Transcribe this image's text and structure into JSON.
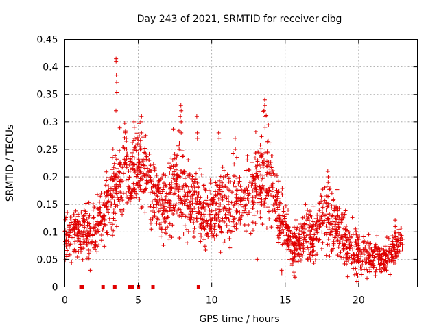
{
  "chart_data": {
    "type": "scatter",
    "title": "Day 243 of 2021, SRMTID for receiver cibg",
    "xlabel": "GPS time / hours",
    "ylabel": "SRMTID / TECUs",
    "xlim": [
      0,
      24
    ],
    "ylim": [
      0,
      0.45
    ],
    "x_ticks": [
      0,
      5,
      10,
      15,
      20
    ],
    "x_tick_labels": [
      "0",
      "5",
      "10",
      "15",
      "20"
    ],
    "y_ticks": [
      0,
      0.05,
      0.1,
      0.15,
      0.2,
      0.25,
      0.3,
      0.35,
      0.4,
      0.45
    ],
    "y_tick_labels": [
      "0",
      "0.05",
      "0.1",
      "0.15",
      "0.2",
      "0.25",
      "0.3",
      "0.35",
      "0.4",
      "0.45"
    ],
    "grid": true,
    "marker": "plus",
    "color": "#e00000",
    "trend_hours": [
      0,
      0.5,
      1,
      1.5,
      2,
      2.5,
      3,
      3.5,
      4,
      4.5,
      5,
      5.5,
      6,
      6.5,
      7,
      7.5,
      8,
      8.5,
      9,
      9.5,
      10,
      10.5,
      11,
      11.5,
      12,
      12.5,
      13,
      13.5,
      14,
      14.5,
      15,
      15.5,
      16,
      16.5,
      17,
      17.5,
      18,
      18.5,
      19,
      19.5,
      20,
      20.5,
      21,
      21.5,
      22,
      22.5,
      23
    ],
    "trend_values": [
      0.09,
      0.1,
      0.09,
      0.11,
      0.1,
      0.13,
      0.15,
      0.18,
      0.22,
      0.2,
      0.23,
      0.2,
      0.17,
      0.15,
      0.14,
      0.2,
      0.18,
      0.16,
      0.15,
      0.13,
      0.14,
      0.15,
      0.15,
      0.16,
      0.15,
      0.17,
      0.18,
      0.22,
      0.2,
      0.14,
      0.11,
      0.07,
      0.08,
      0.1,
      0.09,
      0.13,
      0.12,
      0.11,
      0.08,
      0.07,
      0.06,
      0.06,
      0.05,
      0.05,
      0.05,
      0.08,
      0.09
    ],
    "spread": [
      0.03,
      0.03,
      0.03,
      0.035,
      0.035,
      0.04,
      0.05,
      0.06,
      0.06,
      0.05,
      0.05,
      0.05,
      0.045,
      0.045,
      0.05,
      0.06,
      0.06,
      0.05,
      0.05,
      0.05,
      0.05,
      0.05,
      0.05,
      0.05,
      0.05,
      0.05,
      0.055,
      0.06,
      0.06,
      0.04,
      0.035,
      0.03,
      0.03,
      0.04,
      0.04,
      0.045,
      0.045,
      0.04,
      0.035,
      0.03,
      0.03,
      0.025,
      0.025,
      0.025,
      0.025,
      0.03,
      0.03
    ],
    "peaks": [
      {
        "x": 3.5,
        "values": [
          0.415,
          0.41,
          0.385,
          0.372,
          0.354,
          0.32
        ]
      },
      {
        "x": 13.6,
        "values": [
          0.34,
          0.33,
          0.32,
          0.31,
          0.29
        ]
      },
      {
        "x": 7.9,
        "values": [
          0.33,
          0.32,
          0.31,
          0.3,
          0.28
        ]
      },
      {
        "x": 5.2,
        "values": [
          0.31,
          0.3,
          0.28
        ]
      },
      {
        "x": 4.7,
        "values": [
          0.3,
          0.29,
          0.27
        ]
      },
      {
        "x": 9.0,
        "values": [
          0.31,
          0.28,
          0.27
        ]
      },
      {
        "x": 10.5,
        "values": [
          0.28,
          0.27
        ]
      },
      {
        "x": 11.6,
        "values": [
          0.27,
          0.25
        ]
      },
      {
        "x": 17.9,
        "values": [
          0.21,
          0.2,
          0.19
        ]
      },
      {
        "x": 19.9,
        "values": [
          0.01,
          0.02
        ]
      },
      {
        "x": 1.7,
        "values": [
          0.03
        ]
      },
      {
        "x": 14.8,
        "values": [
          0.025,
          0.03
        ]
      },
      {
        "x": 13.1,
        "values": [
          0.05
        ]
      }
    ],
    "zero_points_hours": [
      1.1,
      1.2,
      2.6,
      3.4,
      4.4,
      4.6,
      5.0,
      6.0,
      9.1
    ]
  }
}
